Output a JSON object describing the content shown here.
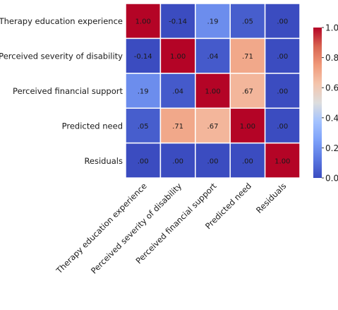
{
  "chart_data": {
    "type": "heatmap",
    "title": "",
    "xlabel": "",
    "ylabel": "",
    "row_labels": [
      "Therapy education experience",
      "Perceived severity of disability",
      "Perceived financial support",
      "Predicted need",
      "Residuals"
    ],
    "col_labels": [
      "Therapy education experience",
      "Perceived severity of disability",
      "Perceived financial support",
      "Predicted need",
      "Residuals"
    ],
    "values": [
      [
        1.0,
        -0.14,
        0.19,
        0.05,
        0.0
      ],
      [
        -0.14,
        1.0,
        0.04,
        0.71,
        0.0
      ],
      [
        0.19,
        0.04,
        1.0,
        0.67,
        0.0
      ],
      [
        0.05,
        0.71,
        0.67,
        1.0,
        0.0
      ],
      [
        0.0,
        0.0,
        0.0,
        0.0,
        1.0
      ]
    ],
    "cell_labels": [
      [
        "1.00",
        "-0.14",
        ".19",
        ".05",
        ".00"
      ],
      [
        "-0.14",
        "1.00",
        ".04",
        ".71",
        ".00"
      ],
      [
        ".19",
        ".04",
        "1.00",
        ".67",
        ".00"
      ],
      [
        ".05",
        ".71",
        ".67",
        "1.00",
        ".00"
      ],
      [
        ".00",
        ".00",
        ".00",
        ".00",
        "1.00"
      ]
    ],
    "colormap": "coolwarm",
    "color_range": [
      0.0,
      1.0
    ],
    "colorbar_ticks": [
      "0.0",
      "0.2",
      "0.4",
      "0.6",
      "0.8",
      "1.0"
    ],
    "legend_placement": "right"
  }
}
